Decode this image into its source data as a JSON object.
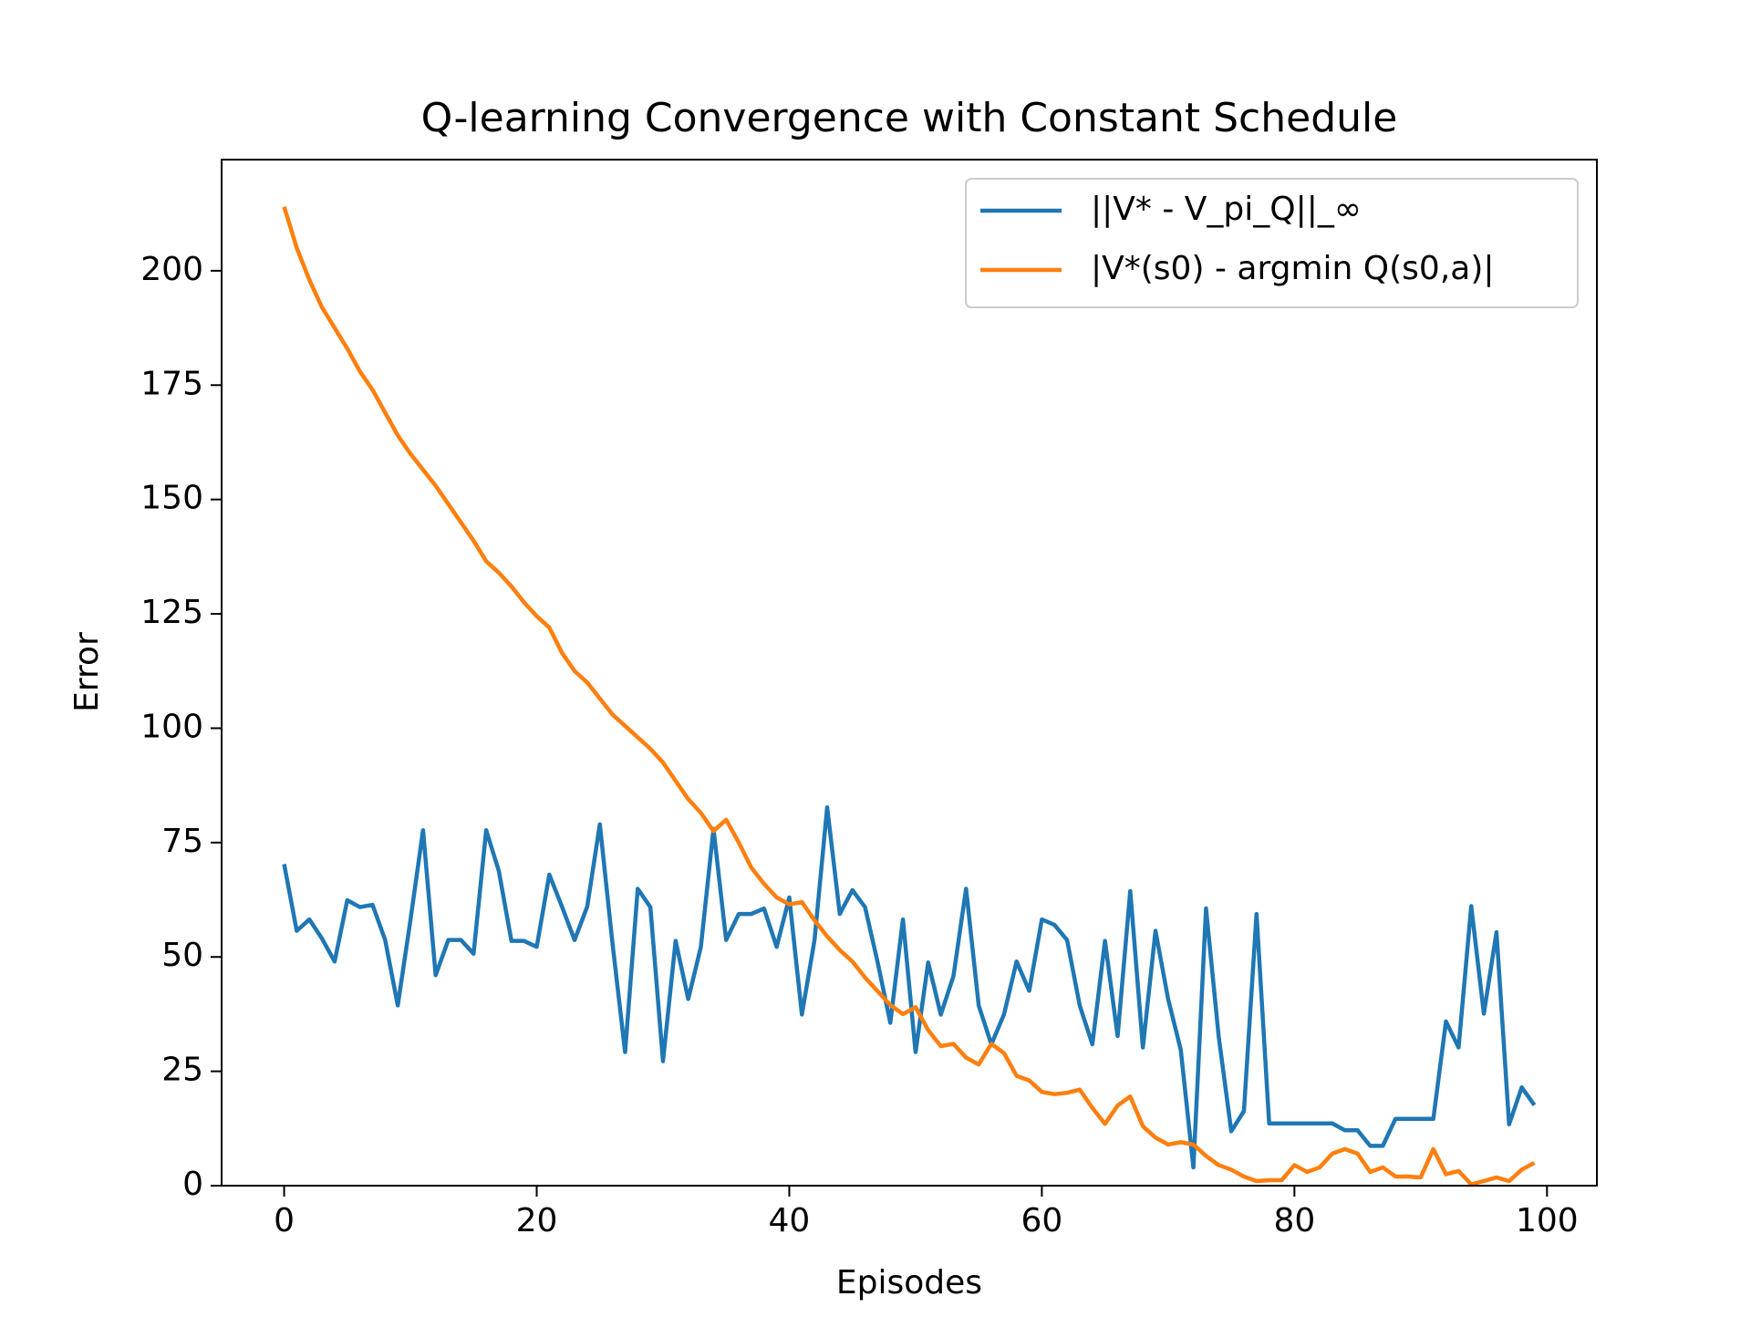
{
  "chart_data": {
    "type": "line",
    "title": "Q-learning Convergence with Constant Schedule",
    "x_label": "Episodes",
    "y_label": "Error",
    "x": [
      0,
      1,
      2,
      3,
      4,
      5,
      6,
      7,
      8,
      9,
      10,
      11,
      12,
      13,
      14,
      15,
      16,
      17,
      18,
      19,
      20,
      21,
      22,
      23,
      24,
      25,
      26,
      27,
      28,
      29,
      30,
      31,
      32,
      33,
      34,
      35,
      36,
      37,
      38,
      39,
      40,
      41,
      42,
      43,
      44,
      45,
      46,
      47,
      48,
      49,
      50,
      51,
      52,
      53,
      54,
      55,
      56,
      57,
      58,
      59,
      60,
      61,
      62,
      63,
      64,
      65,
      66,
      67,
      68,
      69,
      70,
      71,
      72,
      73,
      74,
      75,
      76,
      77,
      78,
      79,
      80,
      81,
      82,
      83,
      84,
      85,
      86,
      87,
      88,
      89,
      90,
      91,
      92,
      93,
      94,
      95,
      96,
      97,
      98,
      99
    ],
    "series": [
      {
        "name": "||V* - V_pi_Q||_∞",
        "color": "#1f77b4",
        "values": [
          70.3,
          55.7,
          58.2,
          54,
          49,
          62.4,
          60.9,
          61.4,
          53.7,
          39.4,
          58,
          77.7,
          46,
          53.7,
          53.7,
          50.7,
          77.7,
          68.8,
          53.5,
          53.5,
          52.2,
          68,
          61,
          53.7,
          61,
          79,
          53,
          29.2,
          64.9,
          60.9,
          27.2,
          53.5,
          40.8,
          52.2,
          78,
          53.7,
          59.4,
          59.4,
          60.6,
          52.2,
          63,
          37.4,
          53.7,
          82.7,
          59.4,
          64.6,
          60.9,
          48.8,
          35.6,
          58.2,
          29.2,
          48.8,
          37.4,
          45.8,
          64.9,
          39.4,
          30.9,
          37.4,
          49,
          42.6,
          58.2,
          57,
          53.7,
          39.4,
          30.9,
          53.5,
          32.7,
          64.4,
          30.2,
          55.7,
          40.8,
          29.7,
          4,
          60.6,
          32.7,
          11.9,
          16.3,
          59.4,
          13.6,
          13.6,
          13.6,
          13.6,
          13.6,
          13.6,
          12.1,
          12.1,
          8.7,
          8.7,
          14.6,
          14.6,
          14.6,
          14.6,
          35.9,
          30.2,
          61.1,
          37.6,
          55.4,
          13.4,
          21.5,
          17.6
        ]
      },
      {
        "name": "|V*(s0) - argmin Q(s0,a)|",
        "color": "#ff7f0e",
        "values": [
          214,
          205,
          198,
          192,
          187.5,
          183,
          178,
          174,
          169,
          164,
          160,
          156.5,
          153,
          149,
          145,
          141,
          136.5,
          134,
          131,
          127.5,
          124.5,
          122,
          116.5,
          112.5,
          110,
          106.5,
          103,
          100.5,
          98,
          95.5,
          92.5,
          88.5,
          84.5,
          81.5,
          77.5,
          80,
          75,
          69.5,
          66,
          63,
          61.5,
          62,
          58,
          54.5,
          51.5,
          49,
          45.5,
          42.5,
          39.5,
          37.5,
          39,
          34,
          30.5,
          31,
          28,
          26.5,
          31,
          29,
          24,
          23,
          20.5,
          20,
          20.3,
          21,
          17,
          13.5,
          17.5,
          19.5,
          13,
          10.5,
          9,
          9.5,
          9,
          6.5,
          4.5,
          3.5,
          2,
          1,
          1.2,
          1.2,
          4.5,
          3,
          4,
          7,
          8,
          7,
          3,
          4,
          2,
          2,
          1.8,
          8,
          2.5,
          3.2,
          0.3,
          1,
          1.8,
          1,
          3.5,
          5
        ]
      }
    ],
    "xlim": [
      -4.95,
      103.95
    ],
    "ylim": [
      0,
      224.3
    ],
    "xticks": [
      0,
      20,
      40,
      60,
      80,
      100
    ],
    "yticks": [
      0,
      25,
      50,
      75,
      100,
      125,
      150,
      175,
      200
    ],
    "grid": false,
    "legend": "upper right"
  }
}
